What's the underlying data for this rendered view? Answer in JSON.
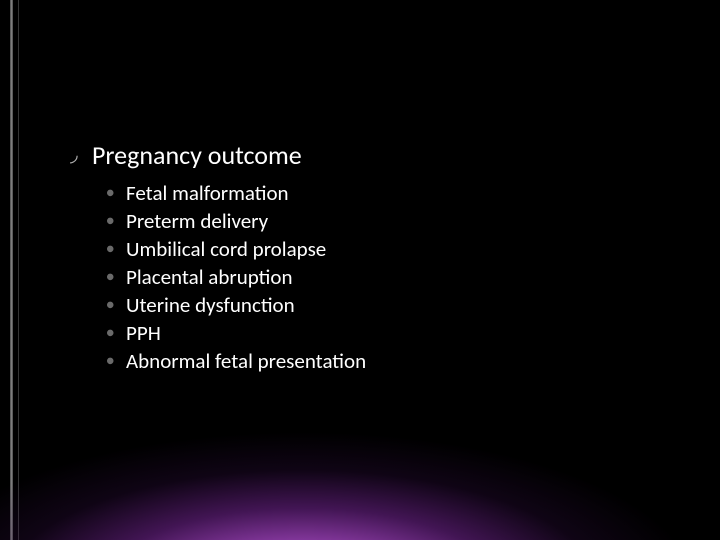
{
  "slide": {
    "background_color": "#000000",
    "glow_colors": [
      "#d778eb",
      "#a546c3",
      "#6e238c",
      "#370f4b"
    ],
    "text_color": "#ffffff",
    "bullet_l1_color": "#b0b0b0",
    "bullet_l2_color": "#6a6a6a",
    "heading": {
      "bullet": "◞",
      "text": "Pregnancy outcome",
      "fontsize": 26
    },
    "items": [
      {
        "bullet": "●",
        "text": "Fetal malformation"
      },
      {
        "bullet": "●",
        "text": "Preterm delivery"
      },
      {
        "bullet": "●",
        "text": "Umbilical cord prolapse"
      },
      {
        "bullet": "●",
        "text": "Placental abruption"
      },
      {
        "bullet": "●",
        "text": "Uterine dysfunction"
      },
      {
        "bullet": "●",
        "text": "PPH"
      },
      {
        "bullet": "●",
        "text": "Abnormal fetal presentation"
      }
    ],
    "sub_fontsize": 21
  }
}
